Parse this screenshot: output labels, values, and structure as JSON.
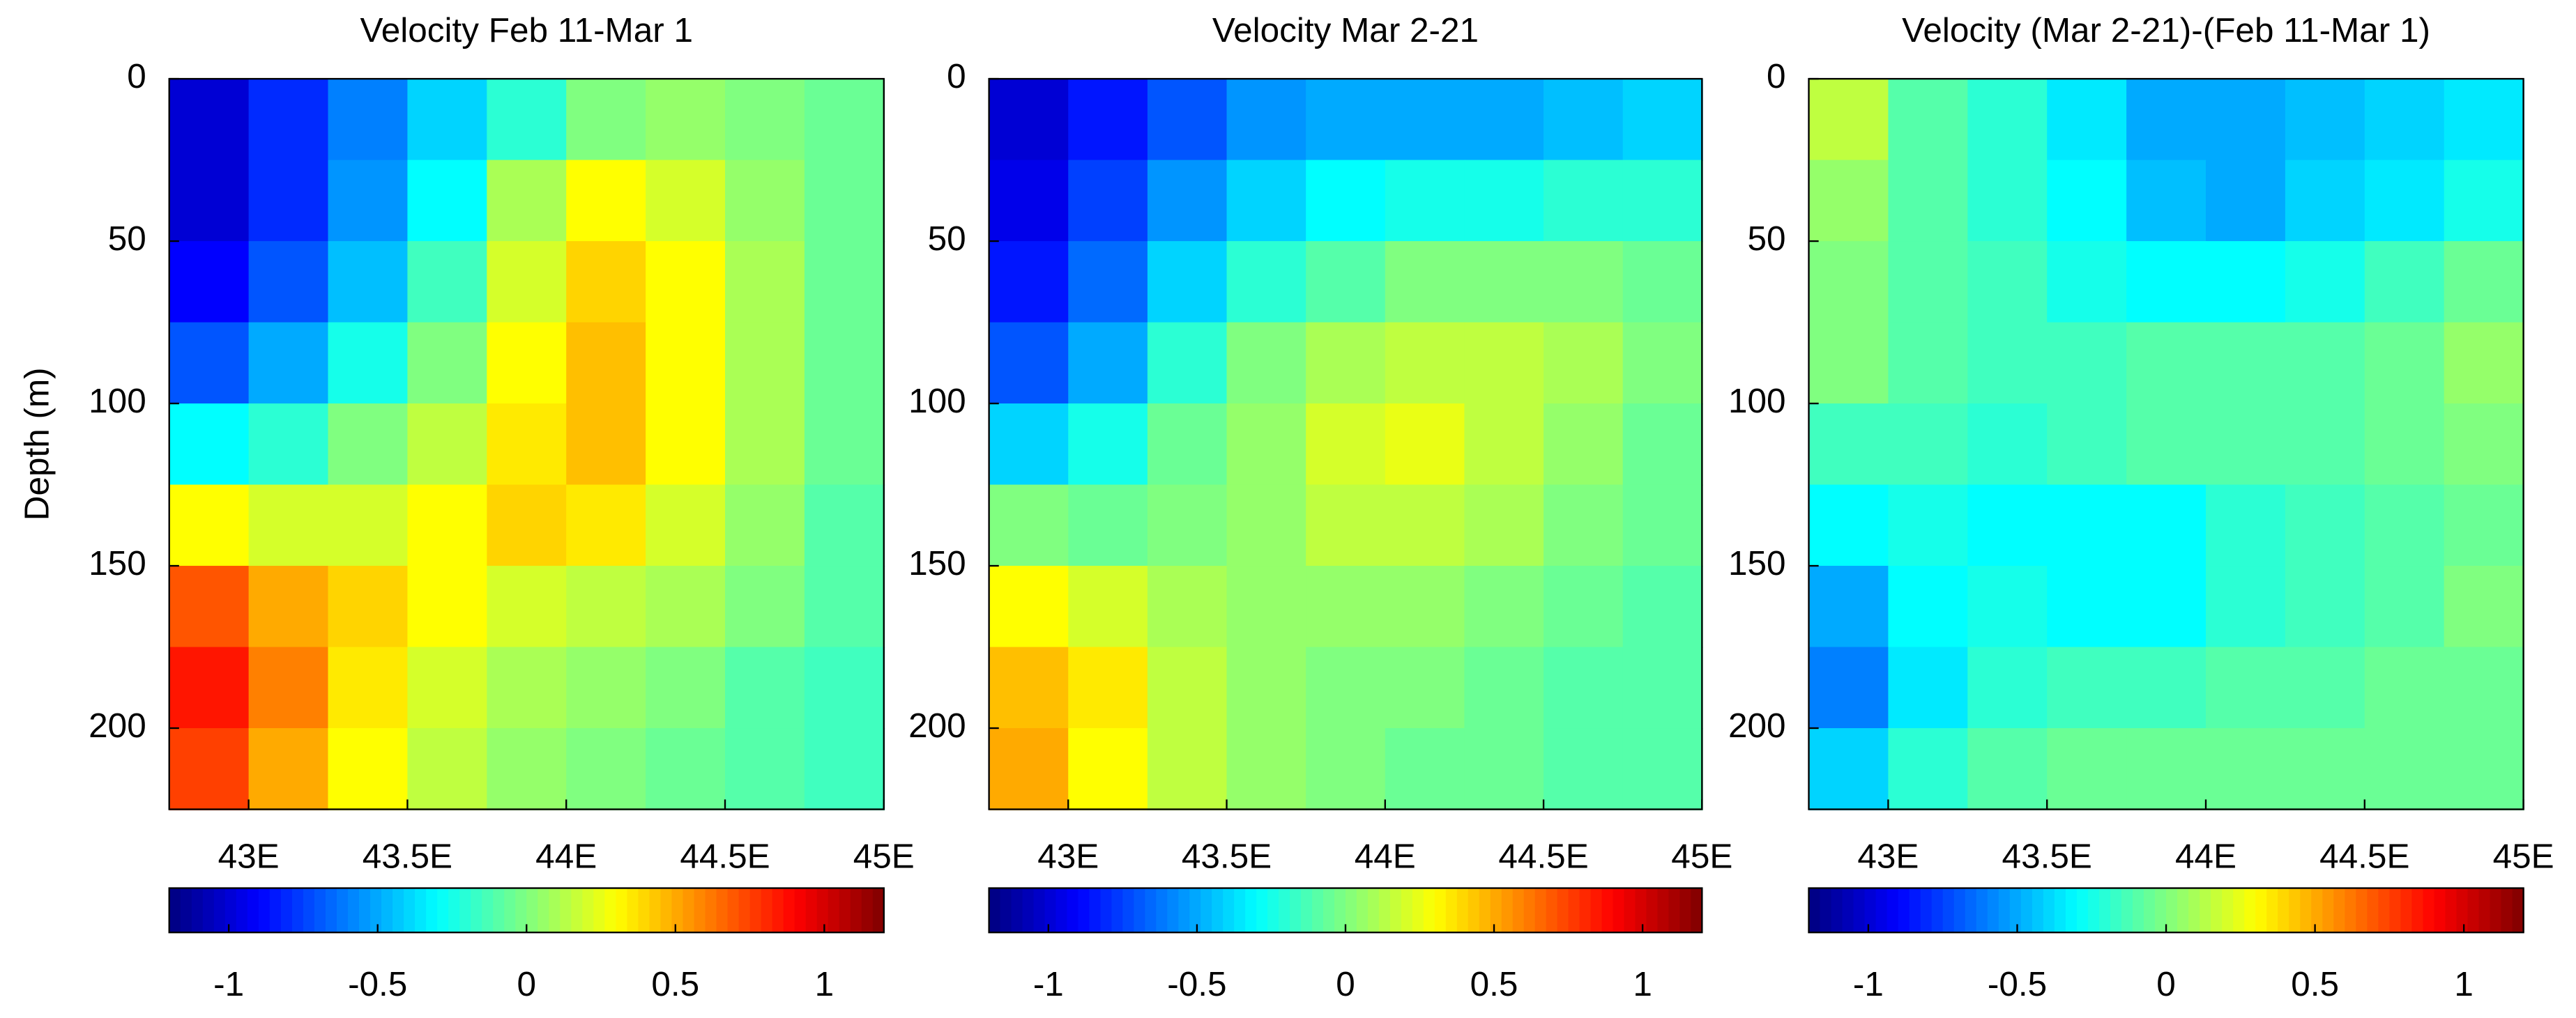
{
  "chart_data": [
    {
      "type": "heatmap",
      "title": "Velocity Feb 11-Mar 1",
      "ylabel": "Depth (m)",
      "colormap": "jet",
      "x": [
        42.875,
        43.125,
        43.375,
        43.625,
        43.875,
        44.125,
        44.375,
        44.625,
        44.875
      ],
      "y": [
        12.5,
        37.5,
        62.5,
        87.5,
        112.5,
        137.5,
        162.5,
        187.5,
        212.5
      ],
      "z": [
        [
          -1.0,
          -0.8,
          -0.6,
          -0.4,
          -0.2,
          0.0,
          0.05,
          0.0,
          -0.05
        ],
        [
          -1.0,
          -0.8,
          -0.55,
          -0.3,
          0.1,
          0.3,
          0.2,
          0.05,
          -0.05
        ],
        [
          -0.9,
          -0.7,
          -0.45,
          -0.15,
          0.2,
          0.4,
          0.3,
          0.1,
          -0.05
        ],
        [
          -0.7,
          -0.5,
          -0.25,
          0.0,
          0.3,
          0.45,
          0.3,
          0.1,
          -0.05
        ],
        [
          -0.3,
          -0.2,
          0.0,
          0.15,
          0.35,
          0.45,
          0.3,
          0.1,
          -0.05
        ],
        [
          0.3,
          0.2,
          0.2,
          0.3,
          0.4,
          0.35,
          0.2,
          0.05,
          -0.1
        ],
        [
          0.7,
          0.5,
          0.4,
          0.3,
          0.2,
          0.15,
          0.1,
          0.0,
          -0.1
        ],
        [
          0.85,
          0.6,
          0.35,
          0.2,
          0.1,
          0.05,
          0.0,
          -0.1,
          -0.15
        ],
        [
          0.75,
          0.5,
          0.3,
          0.15,
          0.05,
          0.0,
          -0.05,
          -0.1,
          -0.15
        ]
      ],
      "xlim": [
        42.75,
        45
      ],
      "ylim": [
        0,
        225
      ],
      "y_reversed": true,
      "xticks": [
        {
          "value": 43,
          "label": "43E"
        },
        {
          "value": 43.5,
          "label": "43.5E"
        },
        {
          "value": 44,
          "label": "44E"
        },
        {
          "value": 44.5,
          "label": "44.5E"
        },
        {
          "value": 45,
          "label": "45E"
        }
      ],
      "yticks": [
        0,
        50,
        100,
        150,
        200
      ],
      "clim": [
        -1.2,
        1.2
      ],
      "cticks": [
        -1,
        -0.5,
        0,
        0.5,
        1
      ]
    },
    {
      "type": "heatmap",
      "title": "Velocity Mar 2-21",
      "colormap": "jet",
      "x": [
        42.875,
        43.125,
        43.375,
        43.625,
        43.875,
        44.125,
        44.375,
        44.625,
        44.875
      ],
      "y": [
        12.5,
        37.5,
        62.5,
        87.5,
        112.5,
        137.5,
        162.5,
        187.5,
        212.5
      ],
      "z": [
        [
          -1.0,
          -0.85,
          -0.7,
          -0.55,
          -0.5,
          -0.5,
          -0.5,
          -0.45,
          -0.4
        ],
        [
          -0.95,
          -0.75,
          -0.55,
          -0.4,
          -0.3,
          -0.25,
          -0.25,
          -0.2,
          -0.2
        ],
        [
          -0.85,
          -0.65,
          -0.4,
          -0.2,
          -0.1,
          0.0,
          0.0,
          0.0,
          -0.05
        ],
        [
          -0.7,
          -0.5,
          -0.2,
          0.0,
          0.1,
          0.15,
          0.15,
          0.1,
          0.0
        ],
        [
          -0.4,
          -0.25,
          -0.05,
          0.05,
          0.2,
          0.25,
          0.15,
          0.05,
          -0.05
        ],
        [
          0.0,
          -0.05,
          0.0,
          0.05,
          0.15,
          0.15,
          0.1,
          0.0,
          -0.05
        ],
        [
          0.3,
          0.2,
          0.1,
          0.05,
          0.05,
          0.05,
          0.0,
          -0.05,
          -0.1
        ],
        [
          0.45,
          0.35,
          0.15,
          0.05,
          0.0,
          0.0,
          -0.05,
          -0.1,
          -0.1
        ],
        [
          0.5,
          0.3,
          0.15,
          0.05,
          0.0,
          -0.05,
          -0.05,
          -0.1,
          -0.1
        ]
      ],
      "xlim": [
        42.75,
        45
      ],
      "ylim": [
        0,
        225
      ],
      "y_reversed": true,
      "xticks": [
        {
          "value": 43,
          "label": "43E"
        },
        {
          "value": 43.5,
          "label": "43.5E"
        },
        {
          "value": 44,
          "label": "44E"
        },
        {
          "value": 44.5,
          "label": "44.5E"
        },
        {
          "value": 45,
          "label": "45E"
        }
      ],
      "yticks": [
        0,
        50,
        100,
        150,
        200
      ],
      "clim": [
        -1.2,
        1.2
      ],
      "cticks": [
        -1,
        -0.5,
        0,
        0.5,
        1
      ]
    },
    {
      "type": "heatmap",
      "title": "Velocity (Mar 2-21)-(Feb 11-Mar 1)",
      "colormap": "jet",
      "x": [
        42.875,
        43.125,
        43.375,
        43.625,
        43.875,
        44.125,
        44.375,
        44.625,
        44.875
      ],
      "y": [
        12.5,
        37.5,
        62.5,
        87.5,
        112.5,
        137.5,
        162.5,
        187.5,
        212.5
      ],
      "z": [
        [
          0.15,
          -0.1,
          -0.2,
          -0.35,
          -0.5,
          -0.5,
          -0.45,
          -0.4,
          -0.35
        ],
        [
          0.05,
          -0.1,
          -0.2,
          -0.3,
          -0.45,
          -0.5,
          -0.4,
          -0.35,
          -0.25
        ],
        [
          0.0,
          -0.1,
          -0.15,
          -0.25,
          -0.3,
          -0.3,
          -0.25,
          -0.15,
          -0.05
        ],
        [
          0.0,
          -0.1,
          -0.15,
          -0.15,
          -0.1,
          -0.1,
          -0.1,
          -0.05,
          0.05
        ],
        [
          -0.15,
          -0.15,
          -0.2,
          -0.15,
          -0.1,
          -0.1,
          -0.1,
          -0.05,
          0.0
        ],
        [
          -0.3,
          -0.25,
          -0.3,
          -0.3,
          -0.3,
          -0.2,
          -0.15,
          -0.1,
          -0.05
        ],
        [
          -0.5,
          -0.3,
          -0.25,
          -0.3,
          -0.3,
          -0.2,
          -0.15,
          -0.1,
          0.0
        ],
        [
          -0.6,
          -0.35,
          -0.2,
          -0.15,
          -0.15,
          -0.1,
          -0.1,
          -0.05,
          -0.05
        ],
        [
          -0.4,
          -0.2,
          -0.1,
          -0.05,
          -0.05,
          -0.05,
          -0.05,
          -0.05,
          -0.05
        ]
      ],
      "xlim": [
        42.75,
        45
      ],
      "ylim": [
        0,
        225
      ],
      "y_reversed": true,
      "xticks": [
        {
          "value": 43,
          "label": "43E"
        },
        {
          "value": 43.5,
          "label": "43.5E"
        },
        {
          "value": 44,
          "label": "44E"
        },
        {
          "value": 44.5,
          "label": "44.5E"
        },
        {
          "value": 45,
          "label": "45E"
        }
      ],
      "yticks": [
        0,
        50,
        100,
        150,
        200
      ],
      "clim": [
        -1.2,
        1.2
      ],
      "cticks": [
        -1,
        -0.5,
        0,
        0.5,
        1
      ]
    }
  ]
}
